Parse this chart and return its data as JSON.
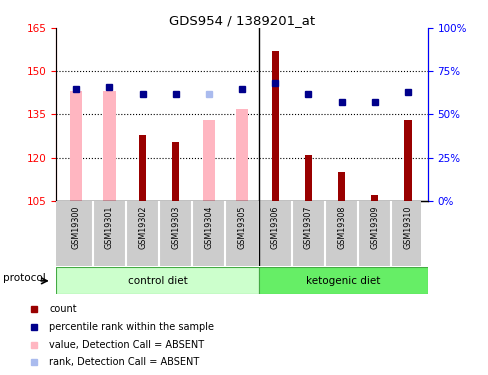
{
  "title": "GDS954 / 1389201_at",
  "samples": [
    "GSM19300",
    "GSM19301",
    "GSM19302",
    "GSM19303",
    "GSM19304",
    "GSM19305",
    "GSM19306",
    "GSM19307",
    "GSM19308",
    "GSM19309",
    "GSM19310"
  ],
  "red_bar_values": [
    null,
    null,
    128,
    125.5,
    null,
    null,
    157,
    121,
    115,
    107,
    133
  ],
  "pink_bar_values": [
    143,
    143,
    null,
    null,
    133,
    137,
    null,
    null,
    null,
    null,
    null
  ],
  "blue_sq_values": [
    65,
    66,
    62,
    62,
    null,
    65,
    68,
    62,
    57,
    57,
    63
  ],
  "light_blue_sq_values": [
    null,
    null,
    null,
    null,
    62,
    null,
    null,
    null,
    null,
    null,
    null
  ],
  "ylim_left": [
    105,
    165
  ],
  "ylim_right": [
    0,
    100
  ],
  "yticks_left": [
    105,
    120,
    135,
    150,
    165
  ],
  "yticks_right": [
    0,
    25,
    50,
    75,
    100
  ],
  "red_bar_color": "#990000",
  "pink_bar_color": "#FFB6C1",
  "blue_sq_color": "#00008B",
  "light_blue_sq_color": "#AABBEE",
  "control_label": "control diet",
  "ketogenic_label": "ketogenic diet",
  "protocol_label": "protocol",
  "bg_label_color": "#CCCCCC",
  "group_bar_color_light": "#CCFFCC",
  "group_bar_color_dark": "#66EE66",
  "control_n": 6,
  "total_n": 11,
  "base_value": 105,
  "pink_bar_width": 0.38,
  "red_bar_width": 0.22,
  "legend_items": [
    {
      "color": "#990000",
      "label": "count"
    },
    {
      "color": "#00008B",
      "label": "percentile rank within the sample"
    },
    {
      "color": "#FFB6C1",
      "label": "value, Detection Call = ABSENT"
    },
    {
      "color": "#AABBEE",
      "label": "rank, Detection Call = ABSENT"
    }
  ]
}
